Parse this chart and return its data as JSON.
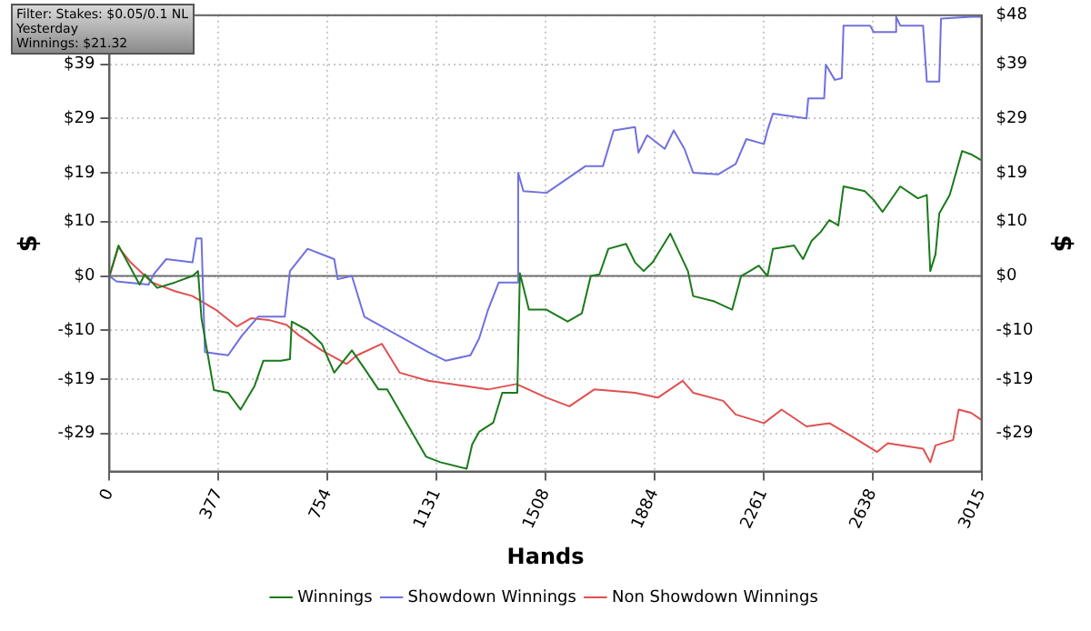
{
  "chart_data": {
    "type": "line",
    "xlabel": "Hands",
    "ylabel": "$",
    "y2label": "$",
    "annotations": [
      "Filter: Stakes: $0.05/0.1 NL",
      "Yesterday",
      "Winnings: $21.32"
    ],
    "xlim": [
      0,
      3015
    ],
    "xticks": [
      0,
      377,
      754,
      1131,
      1508,
      1884,
      2261,
      2638,
      3015
    ],
    "ylim": [
      -36,
      48
    ],
    "yticks": [
      {
        "value": 48,
        "label": null
      },
      {
        "value": 39,
        "label": "$39"
      },
      {
        "value": 29,
        "label": "$29"
      },
      {
        "value": 19,
        "label": "$19"
      },
      {
        "value": 10,
        "label": "$10"
      },
      {
        "value": 0,
        "label": "$0"
      },
      {
        "value": -10,
        "label": "-$10"
      },
      {
        "value": -19,
        "label": "-$19"
      },
      {
        "value": -29,
        "label": "-$29"
      }
    ],
    "y2lim": [
      -36,
      48
    ],
    "y2ticks": [
      {
        "value": 48,
        "label": "$48"
      },
      {
        "value": 39,
        "label": "$39"
      },
      {
        "value": 29,
        "label": "$29"
      },
      {
        "value": 19,
        "label": "$19"
      },
      {
        "value": 10,
        "label": "$10"
      },
      {
        "value": 0,
        "label": "$0"
      },
      {
        "value": -10,
        "label": "-$10"
      },
      {
        "value": -19,
        "label": "-$19"
      },
      {
        "value": -29,
        "label": "-$29"
      }
    ],
    "grid": true,
    "legend": "bottom",
    "marker": "none",
    "ref_lines": [
      {
        "axis": "y",
        "value": 0,
        "color": "#707070"
      }
    ],
    "series": [
      {
        "name": "Winnings",
        "color": "#1a7a1a",
        "x": [
          0,
          31,
          104,
          122,
          165,
          226,
          287,
          306,
          318,
          361,
          410,
          453,
          502,
          532,
          593,
          624,
          630,
          685,
          734,
          777,
          838,
          881,
          930,
          960,
          1021,
          1095,
          1144,
          1235,
          1254,
          1278,
          1327,
          1358,
          1410,
          1419,
          1450,
          1511,
          1584,
          1633,
          1664,
          1694,
          1725,
          1786,
          1817,
          1847,
          1878,
          1939,
          2000,
          2018,
          2092,
          2153,
          2184,
          2214,
          2245,
          2275,
          2294,
          2367,
          2398,
          2428,
          2459,
          2489,
          2520,
          2538,
          2612,
          2642,
          2673,
          2734,
          2795,
          2826,
          2838,
          2856,
          2869,
          2905,
          2930,
          2948,
          2979,
          3015
        ],
        "values": [
          0,
          5.6,
          -1.6,
          0.3,
          -2.2,
          -1.2,
          0,
          0.9,
          -7.8,
          -21,
          -21.5,
          -24.6,
          -20.2,
          -15.6,
          -15.6,
          -15.3,
          -8.4,
          -10,
          -12.5,
          -17.8,
          -13.7,
          -17,
          -20.9,
          -20.9,
          -26.5,
          -33.3,
          -34.3,
          -35.5,
          -31,
          -28.7,
          -27,
          -21.5,
          -21.5,
          0.5,
          -6.2,
          -6.2,
          -8.4,
          -6.9,
          0,
          0.3,
          5,
          5.9,
          2.5,
          0.9,
          2.5,
          7.8,
          0.9,
          -3.7,
          -4.7,
          -6.2,
          0,
          0.9,
          1.9,
          0,
          5,
          5.6,
          3.1,
          6.5,
          8.1,
          10.3,
          9.3,
          16.5,
          15.6,
          14,
          11.8,
          16.5,
          14.3,
          14.9,
          0.9,
          4,
          11.5,
          14.9,
          19.6,
          23,
          22.4,
          21.3
        ]
      },
      {
        "name": "Showdown Winnings",
        "color": "#7070e0",
        "x": [
          0,
          24,
          135,
          153,
          196,
          287,
          300,
          318,
          330,
          410,
          459,
          514,
          606,
          624,
          685,
          777,
          789,
          838,
          881,
          1101,
          1162,
          1248,
          1278,
          1309,
          1346,
          1407,
          1413,
          1431,
          1511,
          1645,
          1706,
          1743,
          1817,
          1829,
          1859,
          1920,
          1951,
          1988,
          2018,
          2104,
          2165,
          2202,
          2263,
          2275,
          2294,
          2410,
          2416,
          2471,
          2477,
          2508,
          2532,
          2538,
          2630,
          2642,
          2716,
          2720,
          2734,
          2813,
          2826,
          2869,
          2875,
          2979,
          3015
        ],
        "values": [
          0,
          -1,
          -1.6,
          0.3,
          3.1,
          2.5,
          6.9,
          6.9,
          -14,
          -14.6,
          -10.9,
          -7.5,
          -7.5,
          0.9,
          5,
          3.1,
          -0.6,
          0,
          -7.5,
          -14,
          -15.6,
          -14.6,
          -11.5,
          -6.2,
          -1.2,
          -1.2,
          19,
          15.6,
          15.3,
          20.2,
          20.2,
          26.8,
          27.4,
          22.7,
          25.9,
          23.4,
          26.8,
          23.4,
          19,
          18.7,
          20.6,
          25.2,
          24.3,
          26.8,
          29.9,
          29,
          32.7,
          32.7,
          38.9,
          36.1,
          36.4,
          46.1,
          46.1,
          44.9,
          44.9,
          47.7,
          46.1,
          46.1,
          35.8,
          35.8,
          47.4,
          47.7,
          47.7
        ]
      },
      {
        "name": "Non Showdown Winnings",
        "color": "#e05050",
        "x": [
          0,
          31,
          73,
          147,
          226,
          287,
          367,
          440,
          489,
          550,
          612,
          654,
          734,
          820,
          856,
          942,
          1003,
          1101,
          1223,
          1309,
          1407,
          1511,
          1590,
          1676,
          1817,
          1896,
          1982,
          2018,
          2122,
          2165,
          2263,
          2324,
          2410,
          2489,
          2569,
          2654,
          2691,
          2813,
          2838,
          2856,
          2917,
          2936,
          2979,
          3015
        ],
        "values": [
          0,
          5.3,
          2.5,
          -1.2,
          -2.8,
          -3.7,
          -6.2,
          -9.3,
          -7.8,
          -8.1,
          -9,
          -10.9,
          -13.7,
          -16.2,
          -14.6,
          -12.5,
          -17.8,
          -19.3,
          -20.2,
          -20.9,
          -19.9,
          -22.4,
          -24,
          -20.9,
          -21.5,
          -22.4,
          -19.3,
          -21.5,
          -23,
          -25.5,
          -27.1,
          -24.6,
          -27.7,
          -27.1,
          -29.6,
          -32.4,
          -30.8,
          -31.8,
          -34.3,
          -31.2,
          -30.2,
          -24.6,
          -25.2,
          -26.5
        ]
      }
    ]
  }
}
